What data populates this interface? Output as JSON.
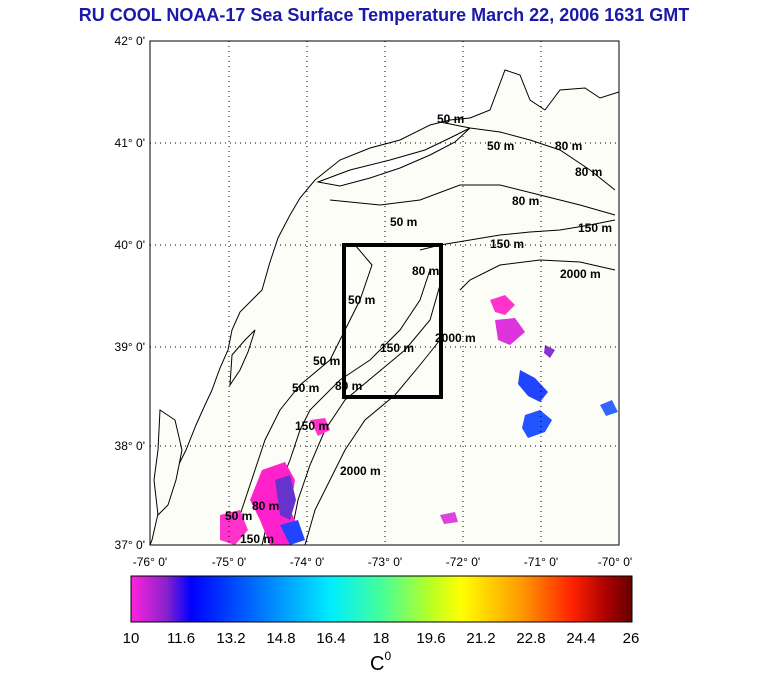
{
  "title": "RU COOL  NOAA-17 Sea Surface Temperature March 22, 2006 1631 GMT",
  "map": {
    "lat_labels": [
      "42° 0'",
      "41° 0'",
      "40° 0'",
      "39° 0'",
      "38° 0'",
      "37° 0'"
    ],
    "lon_labels": [
      "-76° 0'",
      "-75° 0'",
      "-74° 0'",
      "-73° 0'",
      "-72° 0'",
      "-71° 0'",
      "-70° 0'"
    ],
    "lat_range": [
      37,
      42
    ],
    "lon_range": [
      -76,
      -70
    ],
    "contour_labels": [
      "50 m",
      "50 m",
      "80 m",
      "80 m",
      "80 m",
      "50 m",
      "150 m",
      "150 m",
      "2000 m",
      "50 m",
      "80 m",
      "50 m",
      "150 m",
      "2000 m",
      "80 m",
      "50 m",
      "150 m",
      "2000 m",
      "50 m",
      "80 m",
      "150 m"
    ],
    "study_box": {
      "lon_min": -73.45,
      "lon_max": -72.3,
      "lat_min": 38.5,
      "lat_max": 40.0
    }
  },
  "colorbar": {
    "tick_labels": [
      "10",
      "11.6",
      "13.2",
      "14.8",
      "16.4",
      "18",
      "19.6",
      "21.2",
      "22.8",
      "24.4",
      "26"
    ],
    "min": 10,
    "max": 26,
    "unit_base": "C",
    "unit_sup": "0",
    "colors": [
      "#ff22dd",
      "#8a22cc",
      "#0000ff",
      "#0088ff",
      "#00eeff",
      "#44ff99",
      "#bbff22",
      "#ffff00",
      "#ff9900",
      "#ff2200",
      "#aa0000",
      "#660000"
    ]
  }
}
